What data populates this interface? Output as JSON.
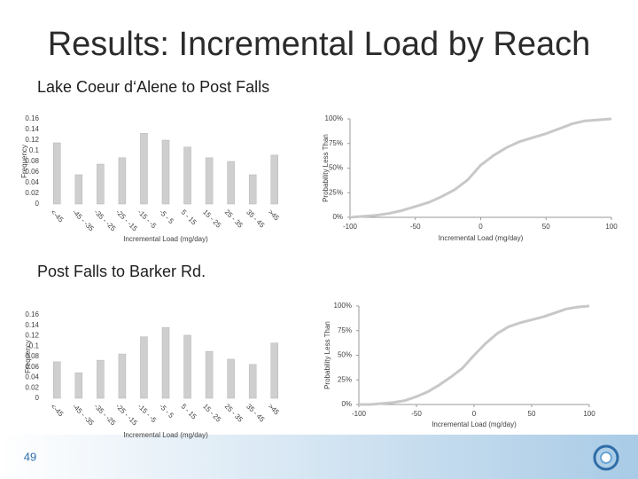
{
  "title": "Results: Incremental Load by Reach",
  "sections": [
    "Lake Coeur d‘Alene to Post Falls",
    "Post Falls to Barker Rd."
  ],
  "page_number": "49",
  "chart_data": [
    {
      "type": "bar",
      "y_label": "Frequency",
      "x_label": "Incremental Load (mg/day)",
      "categories": [
        "<-45",
        "-45 - -35",
        "-35 - -25",
        "-25 - -15",
        "-15 - -5",
        "-5 - 5",
        "5 - 15",
        "15 - 25",
        "25 - 35",
        "35 - 45",
        ">45"
      ],
      "values": [
        0.115,
        0.055,
        0.075,
        0.087,
        0.133,
        0.12,
        0.107,
        0.087,
        0.08,
        0.055,
        0.092
      ],
      "color": "#cfcfcf",
      "ylim": [
        0,
        0.16
      ],
      "yticks": [
        0,
        0.02,
        0.04,
        0.06,
        0.08,
        0.1,
        0.12,
        0.14,
        0.16
      ]
    },
    {
      "type": "line",
      "y_label": "Probability Less Than",
      "x_label": "Incremental Load (mg/day)",
      "x": [
        -100,
        -90,
        -80,
        -70,
        -60,
        -50,
        -40,
        -30,
        -20,
        -10,
        0,
        10,
        20,
        30,
        40,
        50,
        60,
        70,
        80,
        90,
        100
      ],
      "values": [
        0,
        1,
        2,
        4,
        7,
        11,
        15,
        21,
        28,
        38,
        53,
        63,
        71,
        77,
        81,
        85,
        90,
        95,
        98,
        99,
        100
      ],
      "color": "#c8c8c8",
      "xlim": [
        -100,
        100
      ],
      "xticks": [
        -100,
        -50,
        0,
        50,
        100
      ],
      "ylim": [
        0,
        100
      ],
      "yticks": [
        {
          "value": 0,
          "label": "0%"
        },
        {
          "value": 25,
          "label": "25%"
        },
        {
          "value": 50,
          "label": "50%"
        },
        {
          "value": 75,
          "label": "75%"
        },
        {
          "value": 100,
          "label": "100%"
        }
      ]
    },
    {
      "type": "bar",
      "y_label": "Frequency",
      "x_label": "Incremental Load (mg/day)",
      "categories": [
        "<-45",
        "-45 - -35",
        "-35 - -25",
        "-25 - -15",
        "-15 - -5",
        "-5 - 5",
        "5 - 15",
        "15 - 25",
        "25 - 35",
        "35 - 45",
        ">45"
      ],
      "values": [
        0.07,
        0.049,
        0.073,
        0.085,
        0.118,
        0.136,
        0.121,
        0.09,
        0.075,
        0.065,
        0.106
      ],
      "color": "#cfcfcf",
      "ylim": [
        0,
        0.16
      ],
      "yticks": [
        0,
        0.02,
        0.04,
        0.06,
        0.08,
        0.1,
        0.12,
        0.14,
        0.16
      ]
    },
    {
      "type": "line",
      "y_label": "Probability Less Than",
      "x_label": "Incremental Load (mg/day)",
      "x": [
        -100,
        -90,
        -80,
        -70,
        -60,
        -50,
        -40,
        -30,
        -20,
        -10,
        0,
        10,
        20,
        30,
        40,
        50,
        60,
        70,
        80,
        90,
        100
      ],
      "values": [
        0,
        0,
        1,
        2,
        4,
        8,
        13,
        20,
        28,
        37,
        50,
        62,
        72,
        79,
        83,
        86,
        89,
        93,
        97,
        99,
        100
      ],
      "color": "#c8c8c8",
      "xlim": [
        -100,
        100
      ],
      "xticks": [
        -100,
        -50,
        0,
        50,
        100
      ],
      "ylim": [
        0,
        100
      ],
      "yticks": [
        {
          "value": 0,
          "label": "0%"
        },
        {
          "value": 25,
          "label": "25%"
        },
        {
          "value": 50,
          "label": "50%"
        },
        {
          "value": 75,
          "label": "75%"
        },
        {
          "value": 100,
          "label": "100%"
        }
      ]
    }
  ]
}
